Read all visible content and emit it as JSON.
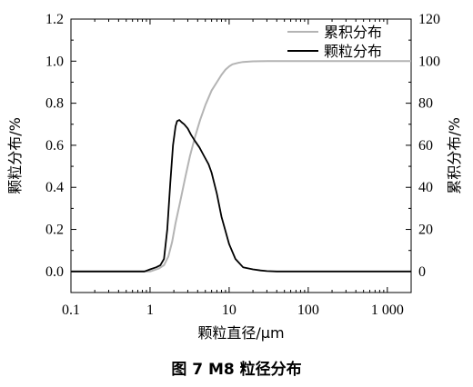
{
  "caption": "图 7 M8 粒径分布",
  "chart_data": {
    "type": "line",
    "xlabel": "颗粒直径/μm",
    "ylabel_left": "颗粒分布/%",
    "ylabel_right": "累积分布/%",
    "x_scale": "log",
    "xlim": [
      0.1,
      2000
    ],
    "x_ticks": [
      0.1,
      1,
      10,
      100,
      1000
    ],
    "x_tick_labels": [
      "0.1",
      "1",
      "10",
      "100",
      "1 000"
    ],
    "ylim_left": [
      -0.1,
      1.2
    ],
    "y_ticks_left": [
      0.0,
      0.2,
      0.4,
      0.6,
      0.8,
      1.0,
      1.2
    ],
    "y_tick_labels_left": [
      "0.0",
      "0.2",
      "0.4",
      "0.6",
      "0.8",
      "1.0",
      "1.2"
    ],
    "ylim_right": [
      -10,
      120
    ],
    "y_ticks_right": [
      0,
      20,
      40,
      60,
      80,
      100,
      120
    ],
    "y_tick_labels_right": [
      "0",
      "20",
      "40",
      "60",
      "80",
      "100",
      "120"
    ],
    "legend_position": "top-right",
    "grid": false,
    "series": [
      {
        "name": "累积分布",
        "axis": "right",
        "color": "#b4b4b4",
        "x": [
          0.1,
          0.5,
          1.0,
          1.3,
          1.5,
          1.7,
          1.9,
          2.1,
          2.4,
          2.8,
          3.2,
          3.7,
          4.3,
          5.0,
          6.0,
          7.0,
          8.0,
          9.0,
          10,
          11,
          13,
          15,
          20,
          30,
          100,
          1000,
          2000
        ],
        "y": [
          0,
          0,
          0,
          1.5,
          3,
          7,
          14,
          23,
          33,
          45,
          55,
          64,
          72,
          79,
          86,
          90,
          93.5,
          96,
          97.5,
          98.5,
          99.2,
          99.6,
          99.9,
          100,
          100,
          100,
          100
        ]
      },
      {
        "name": "颗粒分布",
        "axis": "left",
        "color": "#000000",
        "x": [
          0.1,
          0.5,
          0.85,
          1.0,
          1.2,
          1.35,
          1.5,
          1.65,
          1.8,
          1.95,
          2.1,
          2.2,
          2.35,
          2.5,
          2.7,
          3.0,
          3.3,
          3.7,
          4.2,
          4.8,
          5.5,
          6.0,
          7.0,
          8.0,
          10,
          12,
          15,
          20,
          25,
          30,
          40,
          100,
          1000,
          2000
        ],
        "y": [
          0,
          0,
          0,
          0.01,
          0.02,
          0.03,
          0.06,
          0.2,
          0.42,
          0.6,
          0.69,
          0.715,
          0.72,
          0.71,
          0.7,
          0.68,
          0.65,
          0.62,
          0.59,
          0.55,
          0.51,
          0.47,
          0.37,
          0.26,
          0.13,
          0.06,
          0.02,
          0.01,
          0.005,
          0.002,
          0,
          0,
          0,
          0
        ]
      }
    ]
  }
}
